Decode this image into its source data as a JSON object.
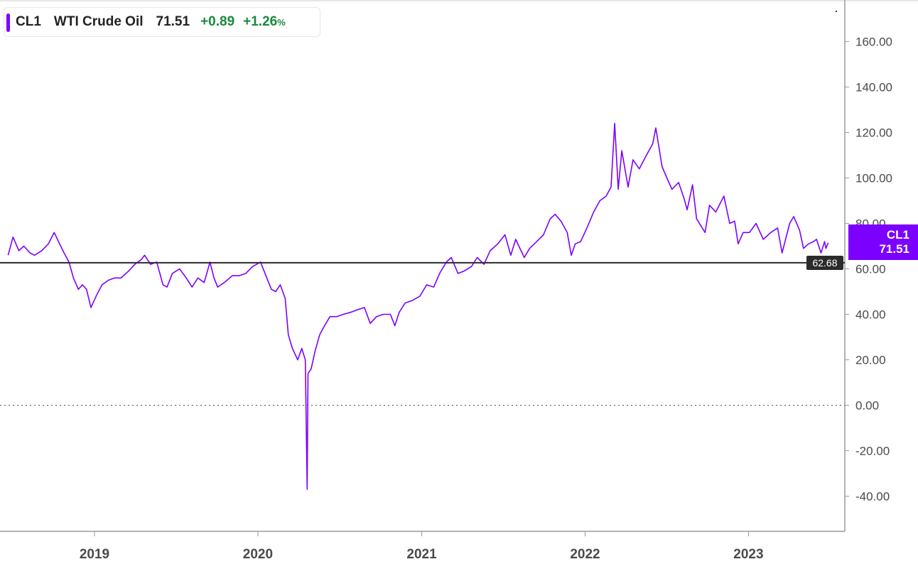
{
  "colors": {
    "series": "#7b00ff",
    "up": "#1a8a3c",
    "reference_line": "#2b2b2b",
    "axis": "#9a9a9a"
  },
  "legend": {
    "symbol": "CL1",
    "name": "WTI Crude Oil",
    "price": "71.51",
    "change": "+0.89",
    "change_pct": "+1.26",
    "pct_sign": "%"
  },
  "price_tag": {
    "symbol": "CL1",
    "value": "71.51"
  },
  "reference": {
    "label": "62.68",
    "value": 62.68
  },
  "chart_data": {
    "type": "line",
    "title": "",
    "xlabel": "",
    "ylabel": "",
    "grid": false,
    "x_ticks": [
      "2019",
      "2020",
      "2021",
      "2022",
      "2023"
    ],
    "y_ticks": [
      "160.00",
      "140.00",
      "120.00",
      "100.00",
      "80.00",
      "60.00",
      "40.00",
      "20.00",
      "0.00",
      "-20.00",
      "-40.00"
    ],
    "ylim": [
      -55,
      175
    ],
    "xlim": [
      "2018-06-20",
      "2023-08-15"
    ],
    "series": [
      {
        "name": "CL1",
        "points": [
          [
            "2018-06-22",
            66
          ],
          [
            "2018-07-03",
            74
          ],
          [
            "2018-07-16",
            68
          ],
          [
            "2018-07-27",
            70
          ],
          [
            "2018-08-10",
            67
          ],
          [
            "2018-08-20",
            66
          ],
          [
            "2018-09-05",
            68
          ],
          [
            "2018-09-20",
            71
          ],
          [
            "2018-10-03",
            76
          ],
          [
            "2018-10-15",
            71
          ],
          [
            "2018-10-25",
            67
          ],
          [
            "2018-11-05",
            63
          ],
          [
            "2018-11-15",
            56
          ],
          [
            "2018-11-26",
            51
          ],
          [
            "2018-12-05",
            53
          ],
          [
            "2018-12-14",
            51
          ],
          [
            "2018-12-24",
            43
          ],
          [
            "2019-01-07",
            49
          ],
          [
            "2019-01-18",
            53
          ],
          [
            "2019-02-01",
            55
          ],
          [
            "2019-02-15",
            56
          ],
          [
            "2019-03-01",
            56
          ],
          [
            "2019-03-18",
            59
          ],
          [
            "2019-04-01",
            62
          ],
          [
            "2019-04-15",
            64
          ],
          [
            "2019-04-23",
            66
          ],
          [
            "2019-05-06",
            62
          ],
          [
            "2019-05-20",
            63
          ],
          [
            "2019-06-03",
            53
          ],
          [
            "2019-06-12",
            52
          ],
          [
            "2019-06-24",
            58
          ],
          [
            "2019-07-10",
            60
          ],
          [
            "2019-07-25",
            56
          ],
          [
            "2019-08-07",
            52
          ],
          [
            "2019-08-20",
            56
          ],
          [
            "2019-09-03",
            54
          ],
          [
            "2019-09-16",
            63
          ],
          [
            "2019-09-25",
            56
          ],
          [
            "2019-10-03",
            52
          ],
          [
            "2019-10-18",
            54
          ],
          [
            "2019-11-05",
            57
          ],
          [
            "2019-11-20",
            57
          ],
          [
            "2019-12-05",
            58
          ],
          [
            "2019-12-20",
            61
          ],
          [
            "2020-01-07",
            63
          ],
          [
            "2020-01-17",
            58
          ],
          [
            "2020-01-31",
            51
          ],
          [
            "2020-02-10",
            50
          ],
          [
            "2020-02-20",
            53
          ],
          [
            "2020-03-02",
            47
          ],
          [
            "2020-03-09",
            31
          ],
          [
            "2020-03-18",
            25
          ],
          [
            "2020-03-30",
            20
          ],
          [
            "2020-04-08",
            25
          ],
          [
            "2020-04-16",
            20
          ],
          [
            "2020-04-20",
            -37
          ],
          [
            "2020-04-22",
            14
          ],
          [
            "2020-04-29",
            16
          ],
          [
            "2020-05-08",
            24
          ],
          [
            "2020-05-18",
            31
          ],
          [
            "2020-05-29",
            35
          ],
          [
            "2020-06-10",
            39
          ],
          [
            "2020-06-25",
            39
          ],
          [
            "2020-07-10",
            40
          ],
          [
            "2020-07-28",
            41
          ],
          [
            "2020-08-10",
            42
          ],
          [
            "2020-08-26",
            43
          ],
          [
            "2020-09-08",
            36
          ],
          [
            "2020-09-22",
            39
          ],
          [
            "2020-10-07",
            40
          ],
          [
            "2020-10-23",
            40
          ],
          [
            "2020-11-02",
            35
          ],
          [
            "2020-11-12",
            41
          ],
          [
            "2020-11-25",
            45
          ],
          [
            "2020-12-10",
            46
          ],
          [
            "2020-12-28",
            48
          ],
          [
            "2021-01-12",
            53
          ],
          [
            "2021-01-28",
            52
          ],
          [
            "2021-02-10",
            58
          ],
          [
            "2021-02-25",
            63
          ],
          [
            "2021-03-08",
            65
          ],
          [
            "2021-03-23",
            58
          ],
          [
            "2021-04-05",
            59
          ],
          [
            "2021-04-22",
            61
          ],
          [
            "2021-05-05",
            65
          ],
          [
            "2021-05-20",
            62
          ],
          [
            "2021-06-03",
            68
          ],
          [
            "2021-06-20",
            71
          ],
          [
            "2021-07-06",
            75
          ],
          [
            "2021-07-19",
            66
          ],
          [
            "2021-07-30",
            73
          ],
          [
            "2021-08-18",
            65
          ],
          [
            "2021-08-30",
            69
          ],
          [
            "2021-09-15",
            72
          ],
          [
            "2021-09-30",
            75
          ],
          [
            "2021-10-15",
            82
          ],
          [
            "2021-10-26",
            84
          ],
          [
            "2021-11-08",
            81
          ],
          [
            "2021-11-22",
            76
          ],
          [
            "2021-12-01",
            66
          ],
          [
            "2021-12-10",
            71
          ],
          [
            "2021-12-22",
            72
          ],
          [
            "2022-01-05",
            78
          ],
          [
            "2022-01-20",
            85
          ],
          [
            "2022-02-03",
            90
          ],
          [
            "2022-02-17",
            92
          ],
          [
            "2022-02-28",
            96
          ],
          [
            "2022-03-08",
            124
          ],
          [
            "2022-03-16",
            95
          ],
          [
            "2022-03-24",
            112
          ],
          [
            "2022-04-07",
            96
          ],
          [
            "2022-04-18",
            108
          ],
          [
            "2022-05-02",
            104
          ],
          [
            "2022-05-18",
            110
          ],
          [
            "2022-06-01",
            115
          ],
          [
            "2022-06-08",
            122
          ],
          [
            "2022-06-22",
            105
          ],
          [
            "2022-07-05",
            99
          ],
          [
            "2022-07-14",
            95
          ],
          [
            "2022-07-29",
            98
          ],
          [
            "2022-08-10",
            91
          ],
          [
            "2022-08-17",
            86
          ],
          [
            "2022-08-29",
            97
          ],
          [
            "2022-09-07",
            82
          ],
          [
            "2022-09-26",
            76
          ],
          [
            "2022-10-06",
            88
          ],
          [
            "2022-10-20",
            85
          ],
          [
            "2022-11-07",
            92
          ],
          [
            "2022-11-20",
            80
          ],
          [
            "2022-12-01",
            81
          ],
          [
            "2022-12-09",
            71
          ],
          [
            "2022-12-20",
            76
          ],
          [
            "2023-01-03",
            76
          ],
          [
            "2023-01-18",
            80
          ],
          [
            "2023-02-03",
            73
          ],
          [
            "2023-02-20",
            76
          ],
          [
            "2023-03-07",
            78
          ],
          [
            "2023-03-17",
            67
          ],
          [
            "2023-04-03",
            80
          ],
          [
            "2023-04-12",
            83
          ],
          [
            "2023-04-25",
            77
          ],
          [
            "2023-05-04",
            69
          ],
          [
            "2023-05-15",
            71
          ],
          [
            "2023-05-26",
            72
          ],
          [
            "2023-06-02",
            73
          ],
          [
            "2023-06-12",
            67
          ],
          [
            "2023-06-20",
            72
          ],
          [
            "2023-06-23",
            69
          ],
          [
            "2023-06-28",
            71.51
          ]
        ]
      }
    ]
  }
}
